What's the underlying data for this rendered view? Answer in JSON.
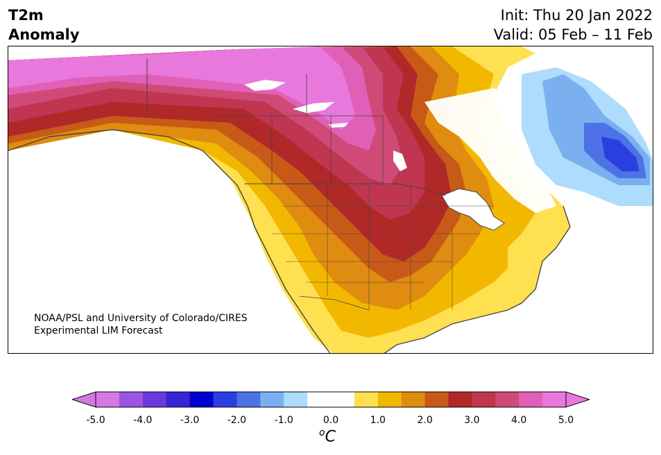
{
  "header": {
    "variable_line1": "T2m",
    "variable_line2": "Anomaly",
    "init": "Init: Thu 20 Jan 2022",
    "valid": "Valid: 05 Feb – 11 Feb"
  },
  "credit": {
    "line1": "NOAA/PSL and University of Colorado/CIRES",
    "line2": "Experimental LIM Forecast"
  },
  "colorbar": {
    "unit_base": "C",
    "unit_sup": "o",
    "ticks": [
      "-5.0",
      "-4.0",
      "-3.0",
      "-2.0",
      "-1.0",
      "0.0",
      "1.0",
      "2.0",
      "3.0",
      "4.0",
      "5.0"
    ],
    "colors": [
      "#d27ae0",
      "#9b55e0",
      "#6a3ae0",
      "#3a22d6",
      "#0000d0",
      "#2a3fe0",
      "#4d72e6",
      "#7ab0f0",
      "#aedcfc",
      "#ffffff",
      "#ffffff",
      "#ffe050",
      "#f2b800",
      "#e08c10",
      "#c85a18",
      "#b02828",
      "#c03550",
      "#d04a78",
      "#e060b8",
      "#e878dc"
    ],
    "under_color": "#d27ae0",
    "over_color": "#e878dc"
  },
  "map": {
    "region": "North America",
    "field": "2-m temperature anomaly"
  }
}
